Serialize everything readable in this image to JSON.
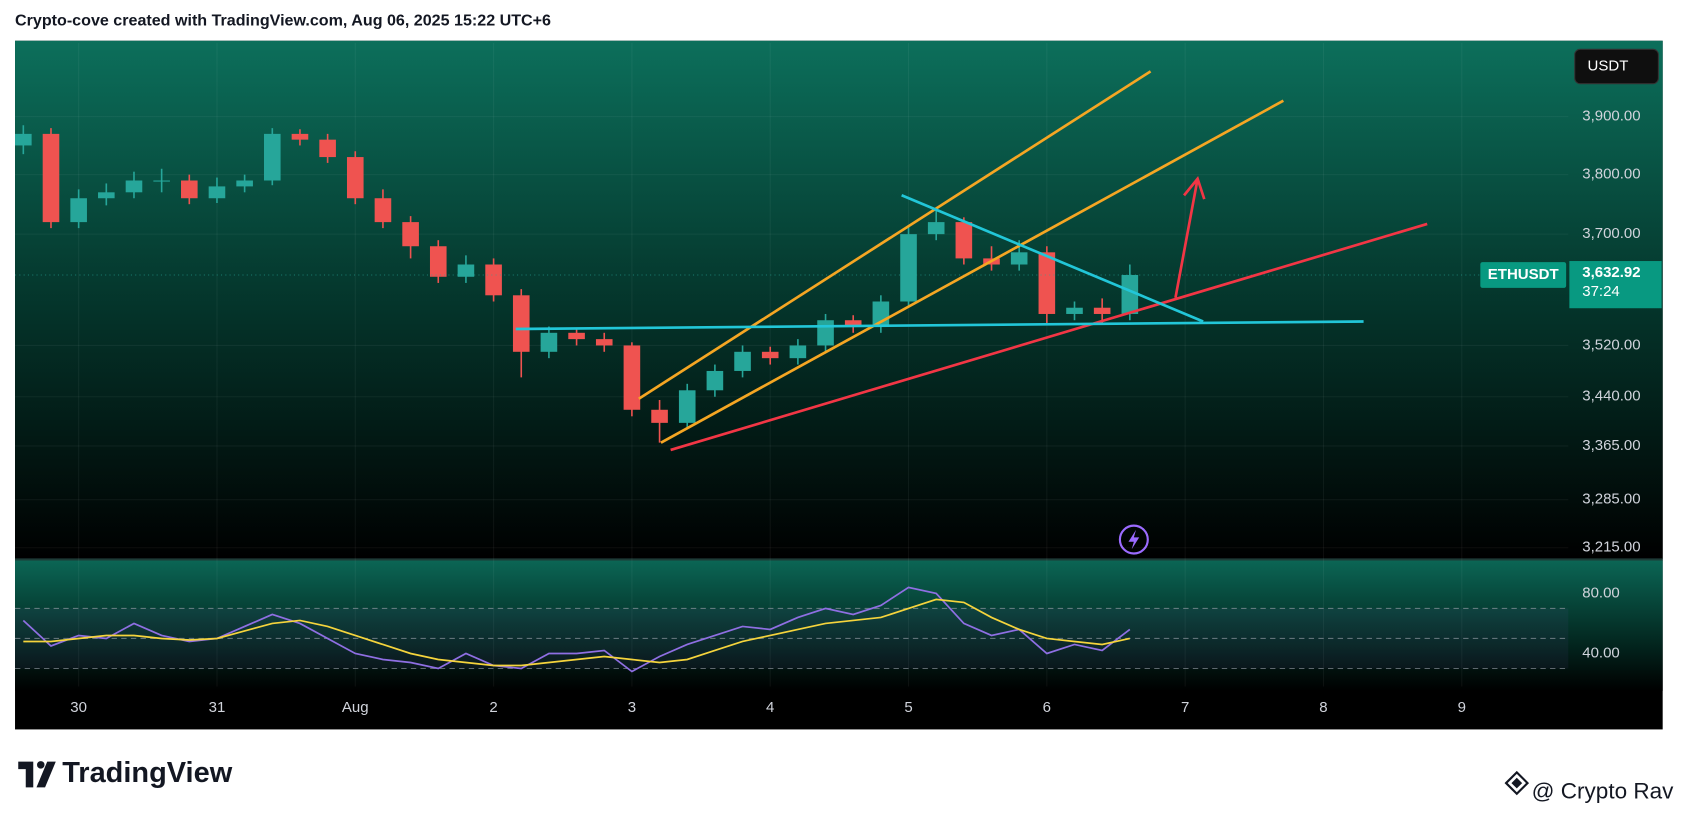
{
  "header": {
    "text": "Crypto-cove created with TradingView.com, Aug 06, 2025 15:22 UTC+6"
  },
  "chart_data": {
    "type": "candlestick",
    "symbol": "ETHUSDT",
    "currency": "USDT",
    "last_price_label": "3,632.92",
    "countdown": "37:24",
    "x": [
      -0.4,
      -0.2,
      0,
      0.2,
      0.4,
      0.6,
      0.8,
      1,
      1.2,
      1.4,
      1.6,
      1.8,
      2,
      2.2,
      2.4,
      2.6,
      2.8,
      3,
      3.2,
      3.4,
      3.6,
      3.8,
      4,
      4.2,
      4.4,
      4.6,
      4.8,
      5,
      5.2,
      5.4,
      5.6,
      5.8,
      6,
      6.2,
      6.4,
      6.6,
      6.8,
      7,
      7.2,
      7.4,
      7.6
    ],
    "open": [
      3850,
      3870,
      3720,
      3760,
      3770,
      3790,
      3790,
      3760,
      3780,
      3790,
      3870,
      3860,
      3830,
      3760,
      3720,
      3680,
      3630,
      3650,
      3600,
      3510,
      3540,
      3530,
      3520,
      3420,
      3400,
      3450,
      3480,
      3510,
      3500,
      3520,
      3560,
      3550,
      3590,
      3700,
      3720,
      3660,
      3650,
      3670,
      3570,
      3580,
      3570
    ],
    "high": [
      3885,
      3880,
      3775,
      3785,
      3805,
      3810,
      3800,
      3795,
      3800,
      3880,
      3878,
      3870,
      3840,
      3775,
      3730,
      3690,
      3665,
      3660,
      3610,
      3550,
      3548,
      3540,
      3525,
      3435,
      3460,
      3490,
      3520,
      3518,
      3530,
      3570,
      3568,
      3600,
      3715,
      3740,
      3728,
      3680,
      3690,
      3680,
      3590,
      3595,
      3650
    ],
    "low": [
      3835,
      3710,
      3710,
      3748,
      3760,
      3770,
      3750,
      3752,
      3770,
      3782,
      3850,
      3820,
      3750,
      3710,
      3660,
      3620,
      3620,
      3590,
      3470,
      3500,
      3520,
      3510,
      3410,
      3370,
      3390,
      3440,
      3470,
      3490,
      3490,
      3510,
      3540,
      3540,
      3580,
      3690,
      3650,
      3640,
      3640,
      3555,
      3560,
      3555,
      3560
    ],
    "close": [
      3870,
      3720,
      3760,
      3770,
      3790,
      3790,
      3760,
      3780,
      3790,
      3870,
      3860,
      3830,
      3760,
      3720,
      3680,
      3630,
      3650,
      3600,
      3510,
      3540,
      3530,
      3520,
      3420,
      3400,
      3450,
      3480,
      3510,
      3500,
      3520,
      3560,
      3550,
      3590,
      3700,
      3720,
      3660,
      3650,
      3670,
      3570,
      3580,
      3570,
      3632.92
    ],
    "up_color": "#26a69a",
    "down_color": "#ef5350",
    "log_scale": true,
    "xlim": [
      -0.46,
      10.77
    ],
    "ylim": [
      3199,
      4031
    ],
    "xticks": [
      {
        "value": 0,
        "label": "30"
      },
      {
        "value": 1,
        "label": "31"
      },
      {
        "value": 2,
        "label": "Aug"
      },
      {
        "value": 3,
        "label": "2"
      },
      {
        "value": 4,
        "label": "3"
      },
      {
        "value": 5,
        "label": "4"
      },
      {
        "value": 6,
        "label": "5"
      },
      {
        "value": 7,
        "label": "6"
      },
      {
        "value": 8,
        "label": "7"
      },
      {
        "value": 9,
        "label": "8"
      },
      {
        "value": 10,
        "label": "9"
      }
    ],
    "yticks": [
      {
        "value": 3900,
        "label": "3,900.00"
      },
      {
        "value": 3800,
        "label": "3,800.00"
      },
      {
        "value": 3700,
        "label": "3,700.00"
      },
      {
        "value": 3520,
        "label": "3,520.00"
      },
      {
        "value": 3440,
        "label": "3,440.00"
      },
      {
        "value": 3365,
        "label": "3,365.00"
      },
      {
        "value": 3285,
        "label": "3,285.00"
      },
      {
        "value": 3215,
        "label": "3,215.00"
      }
    ],
    "drawings": [
      {
        "color": "#f5a623",
        "x": [
          4.05,
          7.75
        ],
        "y": [
          3437,
          3980
        ]
      },
      {
        "color": "#f5a623",
        "x": [
          4.21,
          8.71
        ],
        "y": [
          3370,
          3928
        ]
      },
      {
        "color": "#f23645",
        "x": [
          4.28,
          9.75
        ],
        "y": [
          3359,
          3717
        ]
      },
      {
        "color": "#22c6d8",
        "x": [
          3.16,
          9.29
        ],
        "y": [
          3546,
          3558
        ]
      },
      {
        "color": "#22c6d8",
        "x": [
          5.95,
          8.13
        ],
        "y": [
          3765,
          3558
        ]
      }
    ],
    "arrows": [
      {
        "color": "#f23645",
        "x": [
          7.93,
          8.09
        ],
        "y": [
          3596,
          3793
        ]
      }
    ],
    "rsi": {
      "ylim": [
        18,
        103
      ],
      "yticks": [
        {
          "value": 80,
          "label": "80.00"
        },
        {
          "value": 40,
          "label": "40.00"
        }
      ],
      "bands": [
        70,
        50,
        30
      ],
      "series": [
        {
          "color": "#8f6fe3",
          "values": [
            62,
            45,
            52,
            50,
            60,
            52,
            48,
            50,
            58,
            66,
            60,
            50,
            40,
            36,
            34,
            30,
            40,
            32,
            30,
            40,
            40,
            42,
            28,
            38,
            46,
            52,
            58,
            56,
            64,
            70,
            66,
            72,
            84,
            80,
            60,
            52,
            56,
            40,
            46,
            42,
            56
          ]
        },
        {
          "color": "#f5d43c",
          "values": [
            48,
            48,
            50,
            52,
            52,
            50,
            49,
            50,
            55,
            60,
            62,
            58,
            52,
            46,
            40,
            36,
            34,
            32,
            32,
            34,
            36,
            38,
            36,
            34,
            36,
            42,
            48,
            52,
            56,
            60,
            62,
            64,
            70,
            76,
            74,
            64,
            56,
            50,
            48,
            46,
            50
          ]
        }
      ]
    }
  },
  "footer": {
    "brand": "TradingView",
    "credit": "@ Crypto Rav"
  }
}
